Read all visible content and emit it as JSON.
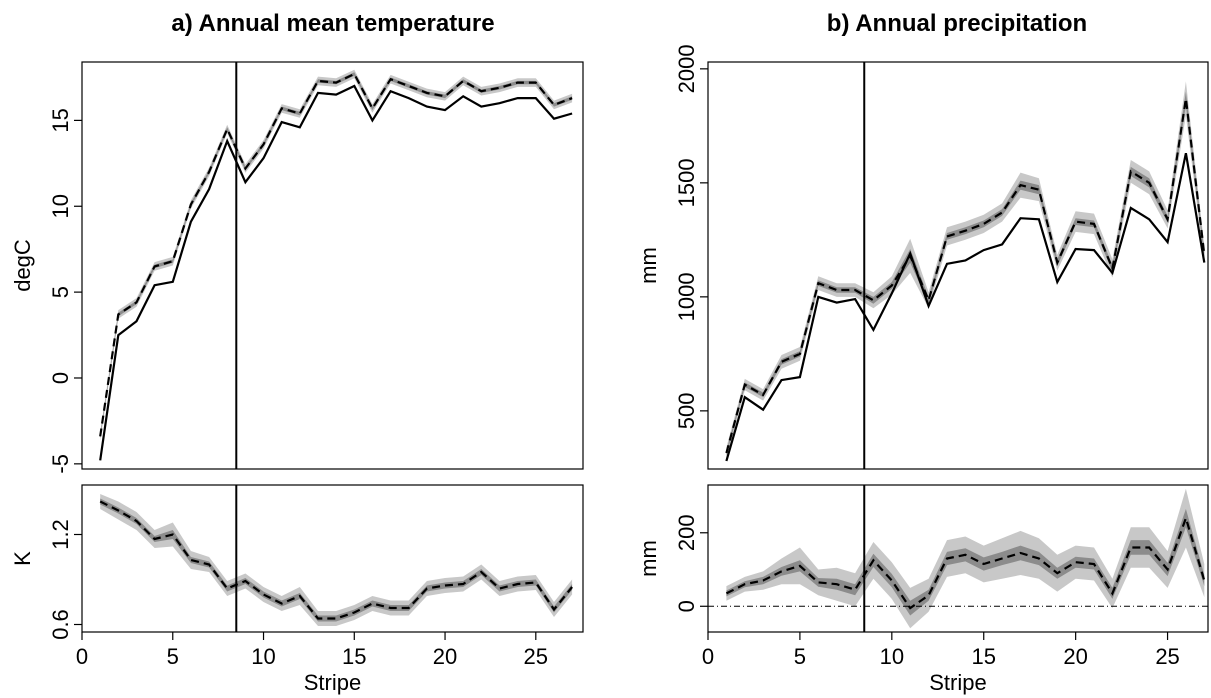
{
  "chart_data": [
    {
      "id": "temp_top",
      "type": "line",
      "title": "a) Annual mean temperature",
      "ylabel": "degC",
      "xlabel": "",
      "xlim": [
        0,
        27.6
      ],
      "ylim": [
        -5.3,
        18.4
      ],
      "xticks": [
        0,
        5,
        10,
        15,
        20,
        25
      ],
      "yticks": [
        -5,
        0,
        5,
        10,
        15
      ],
      "vline_x": 8.5,
      "x": [
        1,
        2,
        3,
        4,
        5,
        6,
        7,
        8,
        9,
        10,
        11,
        12,
        13,
        14,
        15,
        16,
        17,
        18,
        19,
        20,
        21,
        22,
        23,
        24,
        25,
        26,
        27
      ],
      "series": [
        {
          "style": "solid",
          "color": "#000000",
          "values": [
            -4.8,
            2.5,
            3.3,
            5.4,
            5.6,
            9.1,
            11.0,
            13.8,
            11.4,
            12.8,
            14.9,
            14.6,
            16.6,
            16.5,
            17.0,
            15.0,
            16.7,
            16.3,
            15.8,
            15.6,
            16.4,
            15.8,
            16.0,
            16.3,
            16.3,
            15.1,
            15.4
          ]
        },
        {
          "style": "dashed",
          "color": "#000000",
          "band_outer": 0.25,
          "band_inner": 0.1,
          "values": [
            -3.4,
            3.7,
            4.4,
            6.5,
            6.8,
            10.1,
            12.0,
            14.5,
            12.2,
            13.6,
            15.7,
            15.4,
            17.3,
            17.2,
            17.7,
            15.7,
            17.4,
            17.0,
            16.6,
            16.4,
            17.3,
            16.7,
            16.9,
            17.2,
            17.2,
            15.9,
            16.3
          ]
        }
      ]
    },
    {
      "id": "temp_bottom",
      "type": "line",
      "title": "",
      "ylabel": "K",
      "xlabel": "Stripe",
      "xlim": [
        0,
        27.6
      ],
      "ylim": [
        0.55,
        1.53
      ],
      "xticks": [
        0,
        5,
        10,
        15,
        20,
        25
      ],
      "yticks": [
        0.6,
        1.2
      ],
      "vline_x": 8.5,
      "x": [
        1,
        2,
        3,
        4,
        5,
        6,
        7,
        8,
        9,
        10,
        11,
        12,
        13,
        14,
        15,
        16,
        17,
        18,
        19,
        20,
        21,
        22,
        23,
        24,
        25,
        26,
        27
      ],
      "series": [
        {
          "style": "dashed",
          "color": "#000000",
          "values": [
            1.42,
            1.36,
            1.29,
            1.17,
            1.2,
            1.03,
            1.0,
            0.84,
            0.89,
            0.8,
            0.74,
            0.79,
            0.64,
            0.64,
            0.68,
            0.74,
            0.71,
            0.71,
            0.84,
            0.86,
            0.87,
            0.95,
            0.84,
            0.87,
            0.88,
            0.7,
            0.85
          ],
          "band_outer": [
            0.05,
            0.06,
            0.06,
            0.06,
            0.08,
            0.06,
            0.05,
            0.05,
            0.05,
            0.05,
            0.05,
            0.06,
            0.05,
            0.05,
            0.05,
            0.05,
            0.05,
            0.05,
            0.05,
            0.05,
            0.05,
            0.05,
            0.05,
            0.05,
            0.05,
            0.05,
            0.05
          ],
          "band_inner": [
            0.02,
            0.02,
            0.02,
            0.02,
            0.03,
            0.02,
            0.02,
            0.02,
            0.02,
            0.02,
            0.02,
            0.02,
            0.02,
            0.02,
            0.02,
            0.02,
            0.02,
            0.02,
            0.02,
            0.02,
            0.02,
            0.02,
            0.02,
            0.02,
            0.02,
            0.02,
            0.02
          ]
        }
      ]
    },
    {
      "id": "precip_top",
      "type": "line",
      "title": "b) Annual precipitation",
      "ylabel": "mm",
      "xlabel": "",
      "xlim": [
        0,
        27.2
      ],
      "ylim": [
        245,
        2030
      ],
      "xticks": [
        0,
        5,
        10,
        15,
        20,
        25
      ],
      "yticks": [
        500,
        1000,
        1500,
        2000
      ],
      "vline_x": 8.5,
      "x": [
        1,
        2,
        3,
        4,
        5,
        6,
        7,
        8,
        9,
        10,
        11,
        12,
        13,
        14,
        15,
        16,
        17,
        18,
        19,
        20,
        21,
        22,
        23,
        24,
        25,
        26,
        27
      ],
      "series": [
        {
          "style": "solid",
          "color": "#000000",
          "values": [
            280,
            560,
            505,
            635,
            648,
            1000,
            975,
            990,
            855,
            1015,
            1190,
            960,
            1145,
            1160,
            1205,
            1230,
            1345,
            1340,
            1065,
            1210,
            1205,
            1105,
            1390,
            1340,
            1240,
            1630,
            1150
          ]
        },
        {
          "style": "dashed",
          "color": "#000000",
          "values": [
            315,
            615,
            570,
            715,
            750,
            1060,
            1030,
            1030,
            985,
            1050,
            1180,
            985,
            1265,
            1290,
            1320,
            1370,
            1490,
            1470,
            1150,
            1330,
            1320,
            1125,
            1550,
            1500,
            1340,
            1870,
            1185
          ],
          "band_outer": [
            25,
            25,
            25,
            30,
            30,
            30,
            30,
            30,
            35,
            40,
            75,
            35,
            40,
            40,
            40,
            40,
            55,
            50,
            35,
            45,
            45,
            40,
            50,
            50,
            40,
            75,
            40
          ],
          "band_inner": [
            10,
            10,
            10,
            12,
            12,
            12,
            12,
            12,
            15,
            15,
            30,
            15,
            15,
            15,
            15,
            15,
            20,
            20,
            15,
            15,
            15,
            15,
            20,
            20,
            15,
            30,
            15
          ]
        }
      ]
    },
    {
      "id": "precip_bottom",
      "type": "line",
      "title": "",
      "ylabel": "mm",
      "xlabel": "Stripe",
      "xlim": [
        0,
        27.2
      ],
      "ylim": [
        -70,
        330
      ],
      "xticks": [
        0,
        5,
        10,
        15,
        20,
        25
      ],
      "yticks": [
        0,
        200
      ],
      "vline_x": 8.5,
      "hline_y": 0,
      "x": [
        1,
        2,
        3,
        4,
        5,
        6,
        7,
        8,
        9,
        10,
        11,
        12,
        13,
        14,
        15,
        16,
        17,
        18,
        19,
        20,
        21,
        22,
        23,
        24,
        25,
        26,
        27
      ],
      "series": [
        {
          "style": "dashed",
          "color": "#000000",
          "values": [
            35,
            60,
            70,
            95,
            110,
            65,
            60,
            45,
            125,
            70,
            -5,
            30,
            130,
            140,
            115,
            130,
            145,
            130,
            90,
            120,
            115,
            35,
            160,
            160,
            100,
            240,
            70
          ],
          "band_outer": [
            20,
            20,
            25,
            35,
            50,
            35,
            45,
            45,
            50,
            50,
            55,
            45,
            50,
            50,
            50,
            55,
            60,
            55,
            50,
            45,
            45,
            40,
            55,
            55,
            50,
            80,
            45
          ],
          "band_inner": [
            8,
            8,
            10,
            12,
            15,
            12,
            15,
            15,
            18,
            18,
            20,
            15,
            18,
            18,
            18,
            18,
            20,
            18,
            15,
            15,
            15,
            15,
            20,
            20,
            18,
            25,
            15
          ]
        }
      ]
    }
  ]
}
